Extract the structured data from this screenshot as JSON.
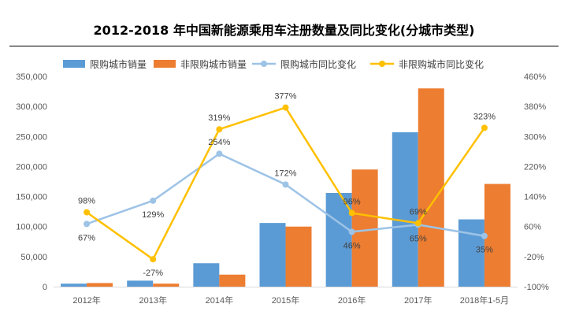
{
  "title": "2012-2018 年中国新能源乘用车注册数量及同比变化(分城市类型)",
  "colors": {
    "restricted_bar": "#5b9bd5",
    "unrestricted_bar": "#ed7d31",
    "restricted_line": "#9dc3e6",
    "unrestricted_line": "#ffc000",
    "axis": "#d9d9d9"
  },
  "chart_data": {
    "type": "bar",
    "categories": [
      "2012年",
      "2013年",
      "2014年",
      "2015年",
      "2016年",
      "2017年",
      "2018年1-5月"
    ],
    "series": [
      {
        "name": "限购城市销量",
        "type": "bar",
        "axis": "left",
        "values": [
          5000,
          10000,
          39000,
          106000,
          156000,
          257000,
          112000
        ]
      },
      {
        "name": "非限购城市销量",
        "type": "bar",
        "axis": "left",
        "values": [
          6000,
          5000,
          20000,
          100000,
          195000,
          330000,
          171000
        ]
      },
      {
        "name": "限购城市同比变化",
        "type": "line",
        "axis": "right",
        "values": [
          67,
          129,
          254,
          172,
          46,
          65,
          35
        ],
        "labels": [
          "67%",
          "129%",
          "254%",
          "172%",
          "46%",
          "65%",
          "35%"
        ]
      },
      {
        "name": "非限购城市同比变化",
        "type": "line",
        "axis": "right",
        "values": [
          98,
          -27,
          319,
          377,
          96,
          69,
          323
        ],
        "labels": [
          "98%",
          "-27%",
          "319%",
          "377%",
          "96%",
          "69%",
          "323%"
        ]
      }
    ],
    "y_left": {
      "min": 0,
      "max": 350000,
      "step": 50000,
      "ticks": [
        "0",
        "50,000",
        "100,000",
        "150,000",
        "200,000",
        "250,000",
        "300,000",
        "350,000"
      ]
    },
    "y_right": {
      "min": -100,
      "max": 460,
      "step": 80,
      "ticks": [
        "-100%",
        "-20%",
        "60%",
        "140%",
        "220%",
        "300%",
        "380%",
        "460%"
      ]
    },
    "legend_position": "top",
    "grid": false
  }
}
